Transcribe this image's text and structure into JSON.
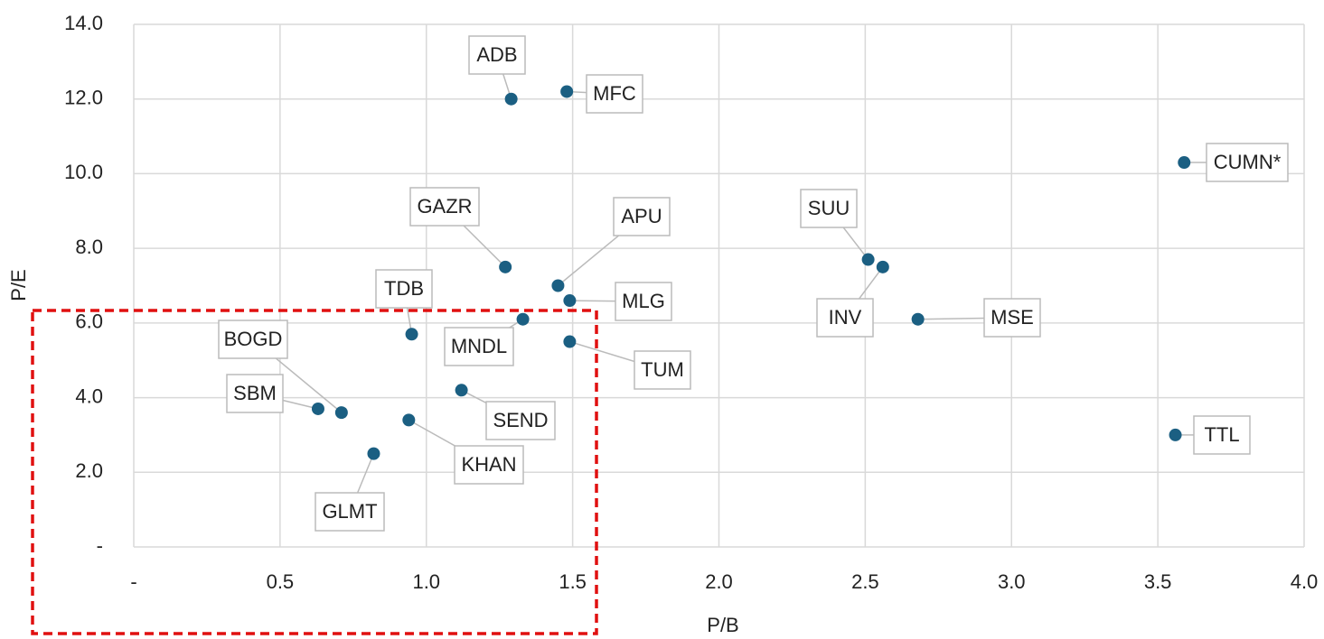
{
  "chart_data": {
    "type": "scatter",
    "x_label": "P/B",
    "y_label": "P/E",
    "labels": [
      "ADB",
      "MFC",
      "CUMN*",
      "GAZR",
      "APU",
      "MLG",
      "SUU",
      "INV",
      "MSE",
      "TDB",
      "MNDL",
      "TUM",
      "BOGD",
      "SBM",
      "SEND",
      "KHAN",
      "GLMT",
      "TTL"
    ],
    "x": [
      1.29,
      1.48,
      3.59,
      1.27,
      1.45,
      1.49,
      2.51,
      2.56,
      2.68,
      0.95,
      1.33,
      1.49,
      0.71,
      0.63,
      1.12,
      0.94,
      0.82,
      3.56
    ],
    "values": [
      12.0,
      12.2,
      10.3,
      7.5,
      7.0,
      6.6,
      7.7,
      7.5,
      6.1,
      5.7,
      6.1,
      5.5,
      3.6,
      3.7,
      4.2,
      3.4,
      2.5,
      3.0
    ],
    "color": "#1b5f82",
    "xlim": [
      0,
      4.0
    ],
    "xticks": [
      {
        "value": 0,
        "label": "-"
      },
      0.5,
      {
        "value": 1,
        "label": "1.0"
      },
      1.5,
      {
        "value": 2,
        "label": "2.0"
      },
      2.5,
      {
        "value": 3,
        "label": "3.0"
      },
      3.5,
      {
        "value": 4,
        "label": "4.0"
      }
    ],
    "ylim": [
      0,
      14.0
    ],
    "yticks": [
      {
        "value": 0,
        "label": "-"
      },
      {
        "value": 2,
        "label": "2.0"
      },
      {
        "value": 4,
        "label": "4.0"
      },
      {
        "value": 6,
        "label": "6.0"
      },
      {
        "value": 8,
        "label": "8.0"
      },
      {
        "value": 10,
        "label": "10.0"
      },
      {
        "value": 12,
        "label": "12.0"
      },
      {
        "value": 14,
        "label": "14.0"
      }
    ],
    "grid": true
  }
}
